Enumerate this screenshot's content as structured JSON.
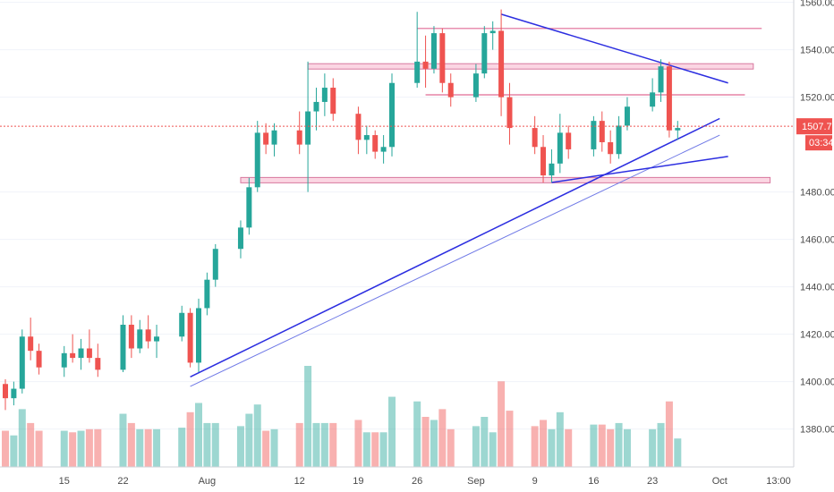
{
  "chart_data": {
    "type": "candlestick",
    "x_tick_labels": [
      "15",
      "22",
      "Aug",
      "12",
      "19",
      "26",
      "Sep",
      "9",
      "16",
      "23",
      "Oct",
      "13:00"
    ],
    "y_tick_labels": [
      "1560.00",
      "1540.00",
      "1520.00",
      "1480.00",
      "1460.00",
      "1440.00",
      "1420.00",
      "1400.00",
      "1380.00"
    ],
    "y_ticks": [
      1560,
      1540,
      1520,
      1480,
      1460,
      1440,
      1420,
      1400,
      1380
    ],
    "ylim": [
      1364,
      1561
    ],
    "last_price": 1507.72,
    "last_price_label": "1507.72",
    "countdown_label": "03:34",
    "horizontal_zones": [
      {
        "price": 1549,
        "style": "line"
      },
      {
        "price": 1533,
        "style": "band"
      },
      {
        "price": 1521,
        "style": "line"
      },
      {
        "price": 1485,
        "style": "band"
      }
    ],
    "trendlines": [
      {
        "from": [
          "2019-09-05",
          1555
        ],
        "to": [
          "2019-10-02",
          1526
        ]
      },
      {
        "from": [
          "2019-07-30",
          1402
        ],
        "to": [
          "2019-10-01",
          1511
        ]
      },
      {
        "from": [
          "2019-07-30",
          1398
        ],
        "to": [
          "2019-10-01",
          1504
        ]
      },
      {
        "from": [
          "2019-09-11",
          1484
        ],
        "to": [
          "2019-10-02",
          1495
        ]
      }
    ],
    "candles": [
      [
        "2019-07-08",
        1399,
        1401,
        1388,
        1393
      ],
      [
        "2019-07-09",
        1393,
        1400,
        1390,
        1397
      ],
      [
        "2019-07-10",
        1397,
        1422,
        1395,
        1419
      ],
      [
        "2019-07-11",
        1419,
        1427,
        1409,
        1413
      ],
      [
        "2019-07-12",
        1413,
        1416,
        1403,
        1406
      ],
      [
        "2019-07-15",
        1406,
        1415,
        1402,
        1412
      ],
      [
        "2019-07-16",
        1412,
        1420,
        1408,
        1410
      ],
      [
        "2019-07-17",
        1410,
        1418,
        1405,
        1414
      ],
      [
        "2019-07-18",
        1414,
        1422,
        1408,
        1410
      ],
      [
        "2019-07-19",
        1410,
        1416,
        1402,
        1405
      ],
      [
        "2019-07-22",
        1405,
        1428,
        1404,
        1424
      ],
      [
        "2019-07-23",
        1424,
        1428,
        1410,
        1414
      ],
      [
        "2019-07-24",
        1414,
        1426,
        1412,
        1422
      ],
      [
        "2019-07-25",
        1422,
        1428,
        1414,
        1417
      ],
      [
        "2019-07-26",
        1417,
        1424,
        1410,
        1419
      ],
      [
        "2019-07-29",
        1419,
        1432,
        1417,
        1429
      ],
      [
        "2019-07-30",
        1429,
        1431,
        1406,
        1408
      ],
      [
        "2019-07-31",
        1408,
        1435,
        1404,
        1431
      ],
      [
        "2019-08-01",
        1431,
        1446,
        1428,
        1443
      ],
      [
        "2019-08-02",
        1443,
        1458,
        1440,
        1456
      ],
      [
        "2019-08-05",
        1456,
        1468,
        1452,
        1465
      ],
      [
        "2019-08-06",
        1465,
        1486,
        1462,
        1482
      ],
      [
        "2019-08-07",
        1482,
        1510,
        1480,
        1505
      ],
      [
        "2019-08-08",
        1505,
        1509,
        1496,
        1500
      ],
      [
        "2019-08-09",
        1500,
        1509,
        1495,
        1506
      ],
      [
        "2019-08-12",
        1506,
        1514,
        1496,
        1500
      ],
      [
        "2019-08-13",
        1500,
        1535,
        1480,
        1514
      ],
      [
        "2019-08-14",
        1514,
        1524,
        1506,
        1518
      ],
      [
        "2019-08-15",
        1518,
        1530,
        1512,
        1524
      ],
      [
        "2019-08-16",
        1524,
        1528,
        1510,
        1513
      ],
      [
        "2019-08-19",
        1513,
        1516,
        1496,
        1502
      ],
      [
        "2019-08-20",
        1502,
        1508,
        1496,
        1504
      ],
      [
        "2019-08-21",
        1504,
        1506,
        1494,
        1497
      ],
      [
        "2019-08-22",
        1497,
        1504,
        1492,
        1499
      ],
      [
        "2019-08-23",
        1499,
        1530,
        1495,
        1526
      ],
      [
        "2019-08-26",
        1526,
        1556,
        1524,
        1535
      ],
      [
        "2019-08-27",
        1535,
        1546,
        1524,
        1532
      ],
      [
        "2019-08-28",
        1532,
        1550,
        1530,
        1547
      ],
      [
        "2019-08-29",
        1547,
        1549,
        1522,
        1526
      ],
      [
        "2019-08-30",
        1526,
        1530,
        1516,
        1520
      ],
      [
        "2019-09-02",
        1520,
        1534,
        1518,
        1530
      ],
      [
        "2019-09-03",
        1530,
        1550,
        1528,
        1547
      ],
      [
        "2019-09-04",
        1547,
        1552,
        1540,
        1548
      ],
      [
        "2019-09-05",
        1548,
        1557,
        1512,
        1520
      ],
      [
        "2019-09-06",
        1520,
        1526,
        1500,
        1507
      ],
      [
        "2019-09-09",
        1507,
        1512,
        1496,
        1499
      ],
      [
        "2019-09-10",
        1499,
        1504,
        1484,
        1487
      ],
      [
        "2019-09-11",
        1487,
        1498,
        1484,
        1492
      ],
      [
        "2019-09-12",
        1492,
        1513,
        1488,
        1505
      ],
      [
        "2019-09-13",
        1505,
        1508,
        1494,
        1498
      ],
      [
        "2019-09-16",
        1498,
        1512,
        1495,
        1510
      ],
      [
        "2019-09-17",
        1510,
        1514,
        1497,
        1501
      ],
      [
        "2019-09-18",
        1501,
        1506,
        1492,
        1496
      ],
      [
        "2019-09-19",
        1496,
        1512,
        1494,
        1508
      ],
      [
        "2019-09-20",
        1508,
        1520,
        1506,
        1516
      ],
      [
        "2019-09-23",
        1516,
        1528,
        1514,
        1522
      ],
      [
        "2019-09-24",
        1522,
        1536,
        1518,
        1533
      ],
      [
        "2019-09-25",
        1533,
        1535,
        1503,
        1506
      ],
      [
        "2019-09-26",
        1506,
        1510,
        1502,
        1507
      ]
    ]
  }
}
